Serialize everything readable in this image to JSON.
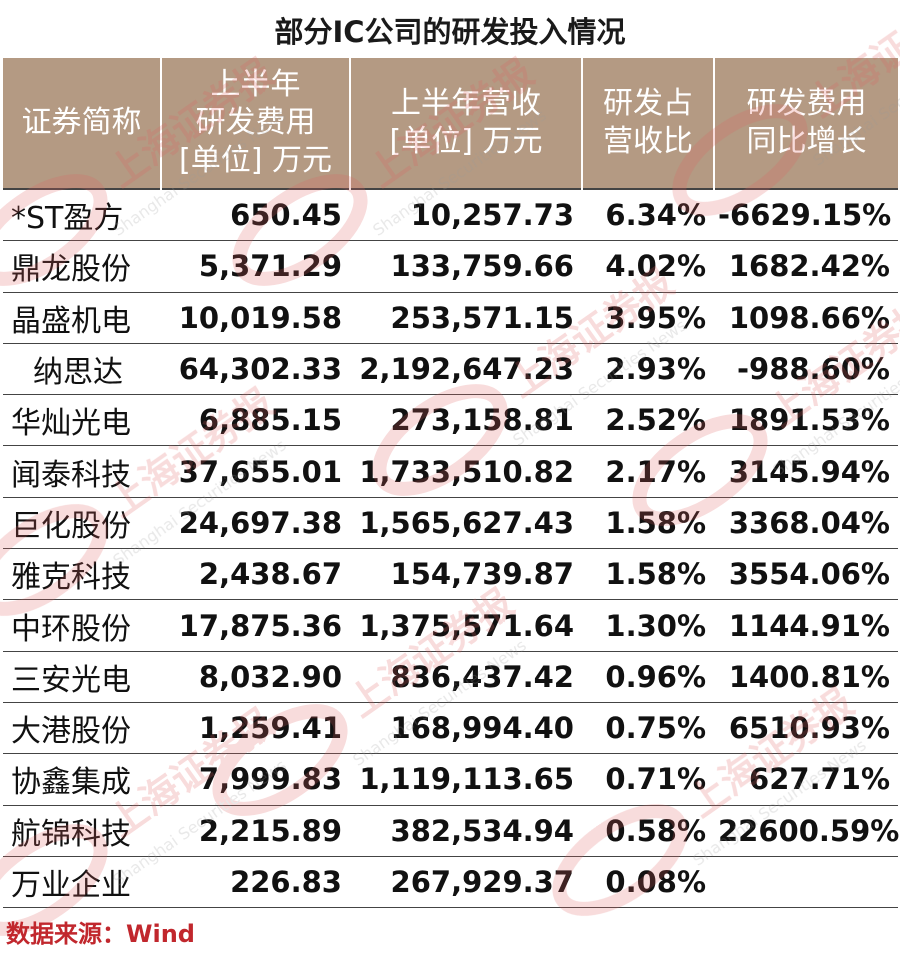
{
  "title": "部分IC公司的研发投入情况",
  "headers": [
    [
      "证券简称"
    ],
    [
      "上半年",
      "研发费用",
      "[单位] 万元"
    ],
    [
      "上半年营收",
      "[单位] 万元"
    ],
    [
      "研发占",
      "营收比"
    ],
    [
      "研发费用",
      "同比增长"
    ]
  ],
  "rows": [
    [
      "*ST盈方",
      "650.45",
      "10,257.73",
      "6.34%",
      "-6629.15%"
    ],
    [
      "鼎龙股份",
      "5,371.29",
      "133,759.66",
      "4.02%",
      "1682.42%"
    ],
    [
      "晶盛机电",
      "10,019.58",
      "253,571.15",
      "3.95%",
      "1098.66%"
    ],
    [
      "纳思达",
      "64,302.33",
      "2,192,647.23",
      "2.93%",
      "-988.60%"
    ],
    [
      "华灿光电",
      "6,885.15",
      "273,158.81",
      "2.52%",
      "1891.53%"
    ],
    [
      "闻泰科技",
      "37,655.01",
      "1,733,510.82",
      "2.17%",
      "3145.94%"
    ],
    [
      "巨化股份",
      "24,697.38",
      "1,565,627.43",
      "1.58%",
      "3368.04%"
    ],
    [
      "雅克科技",
      "2,438.67",
      "154,739.87",
      "1.58%",
      "3554.06%"
    ],
    [
      "中环股份",
      "17,875.36",
      "1,375,571.64",
      "1.30%",
      "1144.91%"
    ],
    [
      "三安光电",
      "8,032.90",
      "836,437.42",
      "0.96%",
      "1400.81%"
    ],
    [
      "大港股份",
      "1,259.41",
      "168,994.40",
      "0.75%",
      "6510.93%"
    ],
    [
      "协鑫集成",
      "7,999.83",
      "1,119,113.65",
      "0.71%",
      "627.71%"
    ],
    [
      "航锦科技",
      "2,215.89",
      "382,534.94",
      "0.58%",
      "22600.59%"
    ],
    [
      "万业企业",
      "226.83",
      "267,929.37",
      "0.08%",
      ""
    ]
  ],
  "source": "数据来源：Wind",
  "watermark": {
    "cn_text": "上海证券报",
    "en_text": "Shanghai Securities News",
    "color": "#e06060"
  },
  "colors": {
    "header_bg": "#b49a83",
    "header_text": "#ffffff",
    "source_text": "#c1272d"
  }
}
